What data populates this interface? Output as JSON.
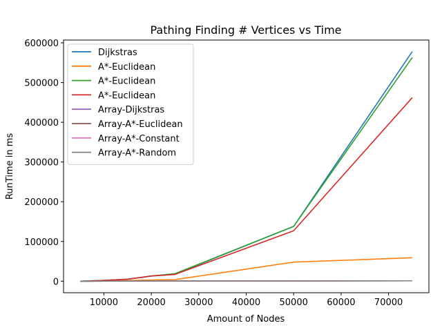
{
  "chart_data": {
    "type": "line",
    "title": "Pathing Finding # Vertices vs Time",
    "xlabel": "Amount of Nodes",
    "ylabel": "RunTime in ms",
    "x": [
      5000,
      10000,
      15000,
      20000,
      25000,
      50000,
      75000
    ],
    "xlim": [
      1500,
      78500
    ],
    "ylim": [
      -29000,
      607000
    ],
    "xticks": [
      10000,
      20000,
      30000,
      40000,
      50000,
      60000,
      70000
    ],
    "yticks": [
      0,
      100000,
      200000,
      300000,
      400000,
      500000,
      600000
    ],
    "grid": false,
    "legend_position": "top-left",
    "series": [
      {
        "name": "Dijkstras",
        "color": "#1f77b4",
        "values": [
          0,
          2000,
          5000,
          13000,
          18000,
          138000,
          578000
        ]
      },
      {
        "name": "A*-Euclidean",
        "color": "#ff7f0e",
        "values": [
          0,
          500,
          1500,
          3000,
          4000,
          48000,
          59000
        ]
      },
      {
        "name": "A*-Euclidean",
        "color": "#2ca02c",
        "values": [
          0,
          2000,
          5000,
          13000,
          19000,
          138000,
          563000
        ]
      },
      {
        "name": "A*-Euclidean",
        "color": "#d62728",
        "values": [
          0,
          2000,
          5000,
          13000,
          17000,
          127000,
          462000
        ]
      },
      {
        "name": "Array-Dijkstras",
        "color": "#9467bd",
        "values": [
          0,
          100,
          200,
          300,
          400,
          700,
          1000
        ]
      },
      {
        "name": "Array-A*-Euclidean",
        "color": "#8c564b",
        "values": [
          0,
          100,
          200,
          300,
          400,
          700,
          1000
        ]
      },
      {
        "name": "Array-A*-Constant",
        "color": "#e377c2",
        "values": [
          0,
          100,
          200,
          300,
          400,
          700,
          1000
        ]
      },
      {
        "name": "Array-A*-Random",
        "color": "#7f7f7f",
        "values": [
          0,
          100,
          200,
          300,
          400,
          700,
          1000
        ]
      }
    ]
  }
}
